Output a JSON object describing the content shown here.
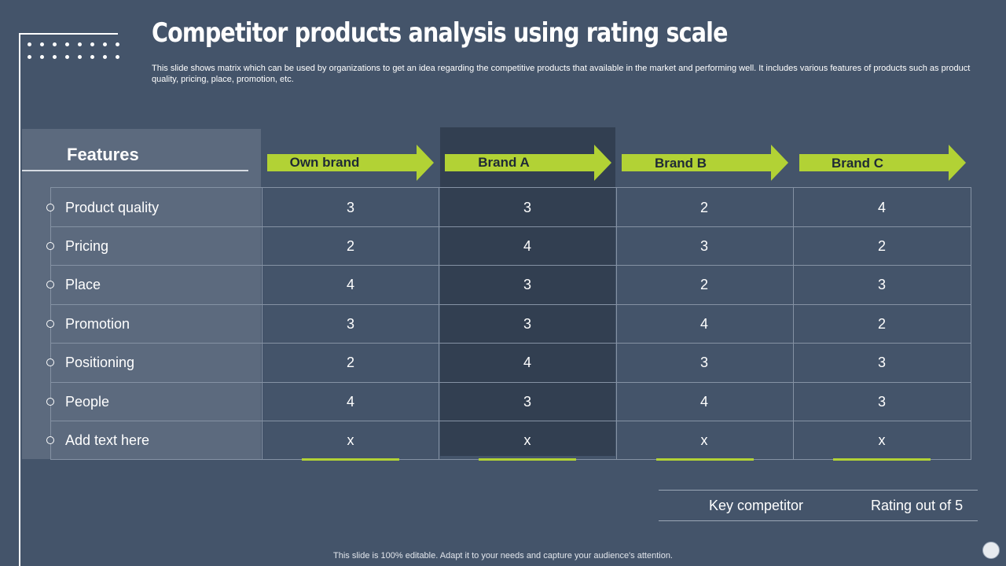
{
  "title": "Competitor products analysis using rating scale",
  "description": "This slide shows matrix which can be used by organizations to get an idea regarding the competitive products that available in the market and performing well. It includes various features of products such as product quality, pricing, place, promotion, etc.",
  "table": {
    "features_header": "Features",
    "brands": [
      "Own brand",
      "Brand A",
      "Brand B",
      "Brand C"
    ],
    "rows": [
      {
        "feature": "Product quality",
        "values": [
          "3",
          "3",
          "2",
          "4"
        ]
      },
      {
        "feature": "Pricing",
        "values": [
          "2",
          "4",
          "3",
          "2"
        ]
      },
      {
        "feature": "Place",
        "values": [
          "4",
          "3",
          "2",
          "3"
        ]
      },
      {
        "feature": "Promotion",
        "values": [
          "3",
          "3",
          "4",
          "2"
        ]
      },
      {
        "feature": "Positioning",
        "values": [
          "2",
          "4",
          "3",
          "3"
        ]
      },
      {
        "feature": "People",
        "values": [
          "4",
          "3",
          "4",
          "3"
        ]
      },
      {
        "feature": "Add text here",
        "values": [
          "x",
          "x",
          "x",
          "x"
        ]
      }
    ]
  },
  "legend": {
    "key_competitor": "Key competitor",
    "rating": "Rating out of 5"
  },
  "footer": "This slide is 100% editable. Adapt it to your needs and capture your audience's attention.",
  "colors": {
    "background": "#44546a",
    "accent_green": "#b2d235",
    "highlight_column": "#323f51",
    "features_column": "#5c6a7e"
  }
}
